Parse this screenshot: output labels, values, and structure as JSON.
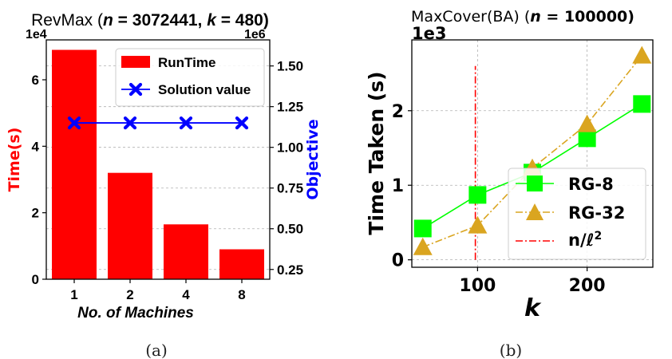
{
  "figure": {
    "captions": [
      "(a)",
      "(b)"
    ]
  },
  "chart_data": [
    {
      "type": "bar",
      "title_prefix": "RevMax (",
      "title_n_label": "n",
      "title_n_value": " = 3072441, ",
      "title_k_label": "k",
      "title_k_value": " = 480)",
      "xlabel": "No. of Machines",
      "ylabel": "Time(s)",
      "y2label": "Objective",
      "categories": [
        "1",
        "2",
        "4",
        "8"
      ],
      "y_scale_label": "1e4",
      "y2_scale_label": "1e6",
      "ylim": [
        0,
        7.2
      ],
      "y2lim": [
        0.19,
        1.66
      ],
      "yticks": [
        0,
        2,
        4,
        6
      ],
      "ytick_labels": [
        "0",
        "2",
        "4",
        "6"
      ],
      "y2ticks": [
        0.25,
        0.5,
        0.75,
        1.0,
        1.25,
        1.5
      ],
      "y2tick_labels": [
        "0.25",
        "0.50",
        "0.75",
        "1.00",
        "1.25",
        "1.50"
      ],
      "grid": true,
      "legend_position": "top-right",
      "series": [
        {
          "name": "RunTime",
          "kind": "bar",
          "axis": "left",
          "color": "#ff0000",
          "values": [
            6.9,
            3.2,
            1.65,
            0.9
          ]
        },
        {
          "name": "Solution value",
          "kind": "line",
          "axis": "right",
          "color": "#0000ff",
          "marker": "x",
          "values": [
            1.15,
            1.15,
            1.15,
            1.15
          ]
        }
      ]
    },
    {
      "type": "line",
      "title_prefix": "MaxCover(BA) (",
      "title_n_label": "n",
      "title_n_value": " = 100000)",
      "xlabel": "k",
      "ylabel": "Time Taken (s)",
      "y_scale_label": "1e3",
      "x": [
        50,
        100,
        150,
        200,
        250
      ],
      "xlim": [
        40,
        260
      ],
      "ylim": [
        -0.1,
        2.95
      ],
      "xticks": [
        100,
        200
      ],
      "xtick_labels": [
        "100",
        "200"
      ],
      "yticks": [
        0,
        1,
        2
      ],
      "ytick_labels": [
        "0",
        "1",
        "2"
      ],
      "grid": true,
      "legend_position": "lower-right",
      "series": [
        {
          "name": "RG-8",
          "color": "#00ff00",
          "marker": "square",
          "linestyle": "solid",
          "values": [
            0.42,
            0.87,
            1.17,
            1.63,
            2.09
          ]
        },
        {
          "name": "RG-32",
          "color": "#daa520",
          "marker": "triangle",
          "linestyle": "dashdot",
          "values": [
            0.17,
            0.46,
            1.23,
            1.82,
            2.74
          ]
        }
      ],
      "vline": {
        "name_main": "n/ℓ",
        "name_sup": "2",
        "x": 98,
        "y_range": [
          0,
          2.6
        ],
        "color": "#ff0000",
        "linestyle": "dashdot"
      }
    }
  ]
}
